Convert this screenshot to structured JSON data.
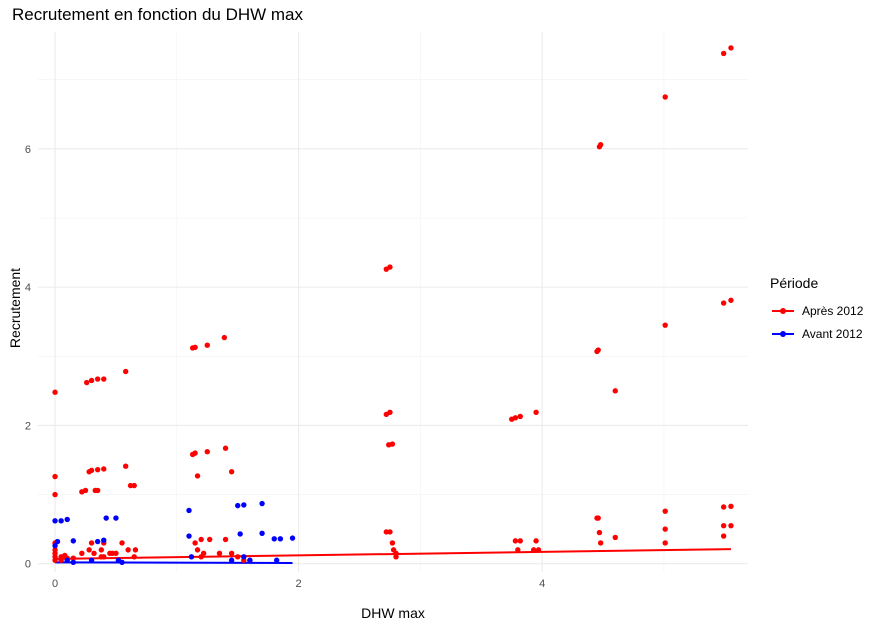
{
  "chart_data": {
    "type": "scatter",
    "title": "Recrutement en fonction du DHW max",
    "xlabel": "DHW max",
    "ylabel": "Recrutement",
    "xlim": [
      -0.14,
      5.69
    ],
    "ylim": [
      -0.12,
      7.69
    ],
    "x_ticks": [
      0,
      2,
      4
    ],
    "y_ticks": [
      0,
      2,
      4,
      6
    ],
    "grid": true,
    "legend_title": "Période",
    "legend_position": "right",
    "series": [
      {
        "name": "Après 2012",
        "color": "#ff0000",
        "x": [
          0.0,
          0.0,
          0.0,
          0.0,
          0.0,
          0.0,
          0.0,
          0.0,
          0.05,
          0.05,
          0.08,
          0.1,
          0.15,
          0.22,
          0.22,
          0.25,
          0.26,
          0.28,
          0.28,
          0.3,
          0.3,
          0.3,
          0.32,
          0.33,
          0.35,
          0.35,
          0.35,
          0.38,
          0.38,
          0.4,
          0.4,
          0.4,
          0.4,
          0.45,
          0.47,
          0.5,
          0.55,
          0.58,
          0.58,
          0.6,
          0.62,
          0.65,
          0.65,
          0.66,
          1.13,
          1.13,
          1.15,
          1.15,
          1.15,
          1.17,
          1.17,
          1.2,
          1.2,
          1.22,
          1.25,
          1.25,
          1.27,
          1.35,
          1.39,
          1.4,
          1.4,
          1.45,
          1.45,
          1.5,
          1.55,
          1.6,
          2.72,
          2.72,
          2.72,
          2.74,
          2.75,
          2.75,
          2.75,
          2.77,
          2.77,
          2.78,
          2.8,
          2.8,
          3.75,
          3.78,
          3.78,
          3.8,
          3.82,
          3.82,
          3.93,
          3.95,
          3.95,
          3.97,
          4.45,
          4.45,
          4.46,
          4.46,
          4.47,
          4.47,
          4.48,
          4.48,
          4.6,
          4.6,
          5.01,
          5.01,
          5.01,
          5.01,
          5.01,
          5.49,
          5.49,
          5.49,
          5.49,
          5.49,
          5.55,
          5.55,
          5.55,
          5.55
        ],
        "y": [
          2.48,
          1.26,
          1.0,
          0.3,
          0.2,
          0.15,
          0.1,
          0.05,
          0.1,
          0.05,
          0.12,
          0.08,
          0.08,
          1.04,
          0.15,
          1.06,
          2.62,
          1.33,
          0.2,
          2.65,
          1.35,
          0.3,
          0.15,
          1.06,
          2.67,
          1.36,
          1.06,
          0.2,
          0.1,
          2.67,
          1.37,
          0.3,
          0.1,
          0.15,
          0.15,
          0.15,
          0.3,
          2.78,
          1.41,
          0.2,
          1.13,
          1.13,
          0.1,
          0.2,
          3.12,
          1.58,
          3.13,
          1.6,
          0.3,
          1.27,
          0.2,
          0.35,
          0.1,
          0.15,
          3.16,
          1.62,
          0.35,
          0.15,
          3.27,
          1.67,
          0.35,
          1.33,
          0.15,
          0.1,
          0.05,
          0.05,
          4.26,
          2.16,
          0.46,
          1.72,
          4.29,
          2.19,
          0.46,
          1.73,
          0.3,
          0.2,
          0.15,
          0.1,
          2.09,
          2.11,
          0.33,
          0.2,
          2.13,
          0.33,
          0.2,
          2.19,
          0.33,
          0.2,
          3.07,
          0.66,
          3.09,
          0.66,
          6.03,
          0.45,
          6.06,
          0.3,
          2.5,
          0.38,
          6.75,
          3.45,
          0.76,
          0.5,
          0.3,
          7.38,
          3.77,
          0.82,
          0.55,
          0.4,
          7.46,
          3.81,
          0.83,
          0.55
        ]
      },
      {
        "name": "Avant 2012",
        "color": "#0000ff",
        "x": [
          0.0,
          0.0,
          0.02,
          0.05,
          0.1,
          0.1,
          0.15,
          0.15,
          0.3,
          0.35,
          0.4,
          0.42,
          0.5,
          0.52,
          0.55,
          1.1,
          1.1,
          1.12,
          1.45,
          1.5,
          1.52,
          1.55,
          1.55,
          1.6,
          1.7,
          1.7,
          1.8,
          1.82,
          1.85,
          1.95
        ],
        "y": [
          0.62,
          0.26,
          0.32,
          0.62,
          0.64,
          0.05,
          0.33,
          0.02,
          0.05,
          0.32,
          0.34,
          0.66,
          0.66,
          0.05,
          0.02,
          0.77,
          0.4,
          0.1,
          0.05,
          0.84,
          0.43,
          0.85,
          0.1,
          0.05,
          0.87,
          0.44,
          0.36,
          0.05,
          0.36,
          0.37
        ]
      }
    ],
    "trend_lines": [
      {
        "name": "Après 2012",
        "color": "#ff0000",
        "x": [
          0.0,
          5.55
        ],
        "y": [
          0.07,
          0.21
        ]
      },
      {
        "name": "Avant 2012",
        "color": "#0000ff",
        "x": [
          0.0,
          1.95
        ],
        "y": [
          0.02,
          0.01
        ]
      }
    ]
  }
}
